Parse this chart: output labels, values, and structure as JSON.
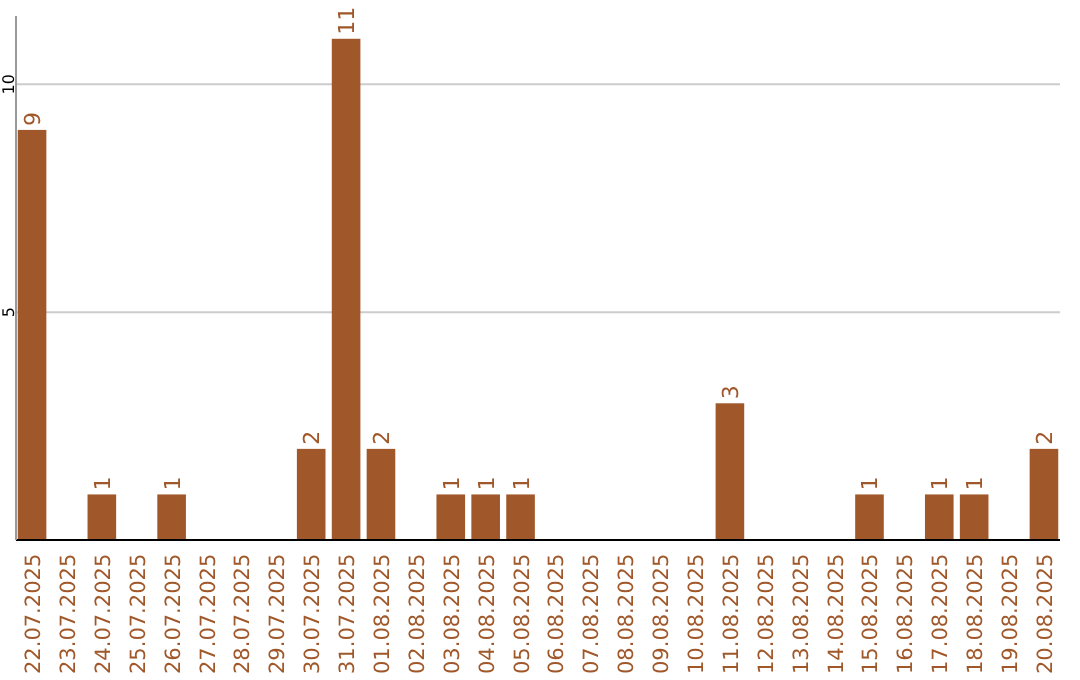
{
  "chart_data": {
    "type": "bar",
    "categories": [
      "22.07.2025",
      "23.07.2025",
      "24.07.2025",
      "25.07.2025",
      "26.07.2025",
      "27.07.2025",
      "28.07.2025",
      "29.07.2025",
      "30.07.2025",
      "31.07.2025",
      "01.08.2025",
      "02.08.2025",
      "03.08.2025",
      "04.08.2025",
      "05.08.2025",
      "06.08.2025",
      "07.08.2025",
      "08.08.2025",
      "09.08.2025",
      "10.08.2025",
      "11.08.2025",
      "12.08.2025",
      "13.08.2025",
      "14.08.2025",
      "15.08.2025",
      "16.08.2025",
      "17.08.2025",
      "18.08.2025",
      "19.08.2025",
      "20.08.2025"
    ],
    "values": [
      9,
      0,
      1,
      0,
      1,
      0,
      0,
      0,
      2,
      11,
      2,
      0,
      1,
      1,
      1,
      0,
      0,
      0,
      0,
      0,
      3,
      0,
      0,
      0,
      1,
      0,
      1,
      1,
      0,
      2
    ],
    "value_labels": [
      "9",
      null,
      "1",
      null,
      "1",
      null,
      null,
      null,
      "2",
      "11",
      "2",
      null,
      "1",
      "1",
      "1",
      null,
      null,
      null,
      null,
      null,
      "3",
      null,
      null,
      null,
      "1",
      null,
      "1",
      "1",
      null,
      "2"
    ],
    "color": "#a0582a",
    "ylim": [
      0,
      11.5
    ],
    "yticks": [
      5,
      10
    ],
    "grid": "y"
  }
}
